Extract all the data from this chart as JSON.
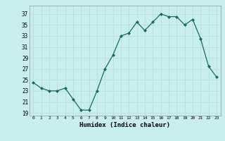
{
  "x": [
    0,
    1,
    2,
    3,
    4,
    5,
    6,
    7,
    8,
    9,
    10,
    11,
    12,
    13,
    14,
    15,
    16,
    17,
    18,
    19,
    20,
    21,
    22,
    23
  ],
  "y": [
    24.5,
    23.5,
    23.0,
    23.0,
    23.5,
    21.5,
    19.5,
    19.5,
    23.0,
    27.0,
    29.5,
    33.0,
    33.5,
    35.5,
    34.0,
    35.5,
    37.0,
    36.5,
    36.5,
    35.0,
    36.0,
    32.5,
    27.5,
    25.5
  ],
  "xlabel": "Humidex (Indice chaleur)",
  "yticks": [
    19,
    21,
    23,
    25,
    27,
    29,
    31,
    33,
    35,
    37
  ],
  "xticks": [
    0,
    1,
    2,
    3,
    4,
    5,
    6,
    7,
    8,
    9,
    10,
    11,
    12,
    13,
    14,
    15,
    16,
    17,
    18,
    19,
    20,
    21,
    22,
    23
  ],
  "ylim": [
    18.5,
    38.5
  ],
  "xlim": [
    -0.5,
    23.5
  ],
  "line_color": "#1a6b5a",
  "marker_color": "#1a6b5a",
  "bg_color": "#c8eeee",
  "grid_color": "#b8dede",
  "title": ""
}
